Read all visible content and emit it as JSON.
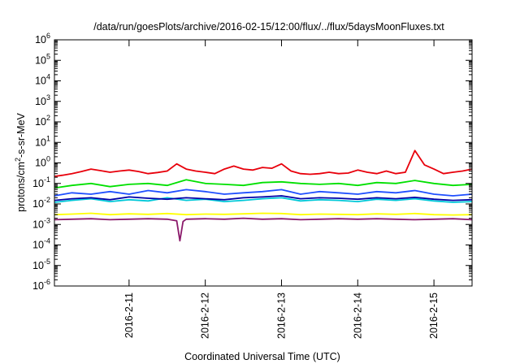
{
  "chart_data": {
    "type": "line",
    "title": "/data/run/goesPlots/archive/2016-02-15/12:00/flux/../flux/5daysMoonFluxes.txt",
    "xlabel": "Coordinated Universal Time (UTC)",
    "ylabel": "protons/cm2-s-sr-MeV",
    "yscale": "log",
    "ylim": [
      1e-06,
      1000000.0
    ],
    "xlim": [
      "2016-02-10 00:30",
      "2016-02-15 12:00"
    ],
    "grid": false,
    "legend": "none",
    "y_ticks": [
      {
        "mant": "10",
        "exp": "-6"
      },
      {
        "mant": "10",
        "exp": "-5"
      },
      {
        "mant": "10",
        "exp": "-4"
      },
      {
        "mant": "10",
        "exp": "-3"
      },
      {
        "mant": "10",
        "exp": "-2"
      },
      {
        "mant": "10",
        "exp": "-1"
      },
      {
        "mant": "10",
        "exp": "0"
      },
      {
        "mant": "10",
        "exp": "1"
      },
      {
        "mant": "10",
        "exp": "2"
      },
      {
        "mant": "10",
        "exp": "3"
      },
      {
        "mant": "10",
        "exp": "4"
      },
      {
        "mant": "10",
        "exp": "5"
      },
      {
        "mant": "10",
        "exp": "6"
      }
    ],
    "x_ticks": [
      "2016-2-11",
      "2016-2-12",
      "2016-2-13",
      "2016-2-14",
      "2016-2-15"
    ],
    "x_tick_dates": [
      "2016-02-11 00:00",
      "2016-02-12 00:00",
      "2016-02-13 00:00",
      "2016-02-14 00:00",
      "2016-02-15 00:00"
    ],
    "series": [
      {
        "color": "#e8000b",
        "x": [
          "2016-02-10 00:30",
          "2016-02-10 03:00",
          "2016-02-10 06:00",
          "2016-02-10 09:00",
          "2016-02-10 12:00",
          "2016-02-10 15:00",
          "2016-02-10 18:00",
          "2016-02-10 21:00",
          "2016-02-11 00:00",
          "2016-02-11 03:00",
          "2016-02-11 06:00",
          "2016-02-11 09:00",
          "2016-02-11 12:00",
          "2016-02-11 15:00",
          "2016-02-11 18:00",
          "2016-02-11 21:00",
          "2016-02-12 00:00",
          "2016-02-12 03:00",
          "2016-02-12 06:00",
          "2016-02-12 09:00",
          "2016-02-12 12:00",
          "2016-02-12 15:00",
          "2016-02-12 18:00",
          "2016-02-12 21:00",
          "2016-02-13 00:00",
          "2016-02-13 03:00",
          "2016-02-13 06:00",
          "2016-02-13 09:00",
          "2016-02-13 12:00",
          "2016-02-13 15:00",
          "2016-02-13 18:00",
          "2016-02-13 21:00",
          "2016-02-14 00:00",
          "2016-02-14 03:00",
          "2016-02-14 06:00",
          "2016-02-14 09:00",
          "2016-02-14 12:00",
          "2016-02-14 15:00",
          "2016-02-14 18:00",
          "2016-02-14 21:00",
          "2016-02-15 00:00",
          "2016-02-15 03:00",
          "2016-02-15 06:00",
          "2016-02-15 09:00",
          "2016-02-15 12:00"
        ],
        "values": [
          0.22,
          0.25,
          0.3,
          0.38,
          0.5,
          0.42,
          0.35,
          0.4,
          0.45,
          0.38,
          0.3,
          0.34,
          0.4,
          0.9,
          0.5,
          0.4,
          0.35,
          0.3,
          0.5,
          0.7,
          0.5,
          0.45,
          0.6,
          0.55,
          0.9,
          0.4,
          0.3,
          0.28,
          0.3,
          0.35,
          0.3,
          0.32,
          0.45,
          0.35,
          0.3,
          0.4,
          0.3,
          0.35,
          4.0,
          0.8,
          0.5,
          0.3,
          0.35,
          0.4,
          0.5
        ]
      },
      {
        "color": "#00e000",
        "x": [
          "2016-02-10 00:30",
          "2016-02-10 06:00",
          "2016-02-10 12:00",
          "2016-02-10 18:00",
          "2016-02-11 00:00",
          "2016-02-11 06:00",
          "2016-02-11 12:00",
          "2016-02-11 18:00",
          "2016-02-12 00:00",
          "2016-02-12 06:00",
          "2016-02-12 12:00",
          "2016-02-12 18:00",
          "2016-02-13 00:00",
          "2016-02-13 06:00",
          "2016-02-13 12:00",
          "2016-02-13 18:00",
          "2016-02-14 00:00",
          "2016-02-14 06:00",
          "2016-02-14 12:00",
          "2016-02-14 18:00",
          "2016-02-15 00:00",
          "2016-02-15 06:00",
          "2016-02-15 12:00"
        ],
        "values": [
          0.06,
          0.08,
          0.1,
          0.07,
          0.09,
          0.1,
          0.08,
          0.15,
          0.1,
          0.09,
          0.08,
          0.11,
          0.12,
          0.1,
          0.09,
          0.1,
          0.08,
          0.11,
          0.1,
          0.14,
          0.1,
          0.08,
          0.09
        ]
      },
      {
        "color": "#1f4fff",
        "x": [
          "2016-02-10 00:30",
          "2016-02-10 06:00",
          "2016-02-10 12:00",
          "2016-02-10 18:00",
          "2016-02-11 00:00",
          "2016-02-11 06:00",
          "2016-02-11 12:00",
          "2016-02-11 18:00",
          "2016-02-12 00:00",
          "2016-02-12 06:00",
          "2016-02-12 12:00",
          "2016-02-12 18:00",
          "2016-02-13 00:00",
          "2016-02-13 06:00",
          "2016-02-13 12:00",
          "2016-02-13 18:00",
          "2016-02-14 00:00",
          "2016-02-14 06:00",
          "2016-02-14 12:00",
          "2016-02-14 18:00",
          "2016-02-15 00:00",
          "2016-02-15 06:00",
          "2016-02-15 12:00"
        ],
        "values": [
          0.025,
          0.035,
          0.03,
          0.04,
          0.03,
          0.045,
          0.035,
          0.05,
          0.04,
          0.03,
          0.035,
          0.04,
          0.05,
          0.03,
          0.04,
          0.035,
          0.03,
          0.04,
          0.035,
          0.045,
          0.03,
          0.025,
          0.03
        ]
      },
      {
        "color": "#00c8d8",
        "x": [
          "2016-02-10 00:30",
          "2016-02-10 06:00",
          "2016-02-10 12:00",
          "2016-02-10 18:00",
          "2016-02-11 00:00",
          "2016-02-11 06:00",
          "2016-02-11 12:00",
          "2016-02-11 18:00",
          "2016-02-12 00:00",
          "2016-02-12 06:00",
          "2016-02-12 12:00",
          "2016-02-12 18:00",
          "2016-02-13 00:00",
          "2016-02-13 06:00",
          "2016-02-13 12:00",
          "2016-02-13 18:00",
          "2016-02-14 00:00",
          "2016-02-14 06:00",
          "2016-02-14 12:00",
          "2016-02-14 18:00",
          "2016-02-15 00:00",
          "2016-02-15 06:00",
          "2016-02-15 12:00"
        ],
        "values": [
          0.012,
          0.015,
          0.018,
          0.013,
          0.016,
          0.014,
          0.02,
          0.015,
          0.017,
          0.013,
          0.015,
          0.018,
          0.02,
          0.014,
          0.016,
          0.015,
          0.013,
          0.017,
          0.015,
          0.018,
          0.014,
          0.012,
          0.013
        ]
      },
      {
        "color": "#0000a8",
        "x": [
          "2016-02-10 00:30",
          "2016-02-10 06:00",
          "2016-02-10 12:00",
          "2016-02-10 18:00",
          "2016-02-11 00:00",
          "2016-02-11 06:00",
          "2016-02-11 12:00",
          "2016-02-11 18:00",
          "2016-02-12 00:00",
          "2016-02-12 06:00",
          "2016-02-12 12:00",
          "2016-02-12 18:00",
          "2016-02-13 00:00",
          "2016-02-13 06:00",
          "2016-02-13 12:00",
          "2016-02-13 18:00",
          "2016-02-14 00:00",
          "2016-02-14 06:00",
          "2016-02-14 12:00",
          "2016-02-14 18:00",
          "2016-02-15 00:00",
          "2016-02-15 06:00",
          "2016-02-15 12:00"
        ],
        "values": [
          0.015,
          0.018,
          0.02,
          0.016,
          0.022,
          0.019,
          0.017,
          0.02,
          0.018,
          0.016,
          0.02,
          0.022,
          0.025,
          0.018,
          0.02,
          0.019,
          0.017,
          0.02,
          0.018,
          0.021,
          0.017,
          0.015,
          0.016
        ]
      },
      {
        "color": "#ffff00",
        "x": [
          "2016-02-10 00:30",
          "2016-02-10 06:00",
          "2016-02-10 12:00",
          "2016-02-10 18:00",
          "2016-02-11 00:00",
          "2016-02-11 06:00",
          "2016-02-11 12:00",
          "2016-02-11 18:00",
          "2016-02-12 00:00",
          "2016-02-12 06:00",
          "2016-02-12 12:00",
          "2016-02-12 18:00",
          "2016-02-13 00:00",
          "2016-02-13 06:00",
          "2016-02-13 12:00",
          "2016-02-13 18:00",
          "2016-02-14 00:00",
          "2016-02-14 06:00",
          "2016-02-14 12:00",
          "2016-02-14 18:00",
          "2016-02-15 00:00",
          "2016-02-15 06:00",
          "2016-02-15 12:00"
        ],
        "values": [
          0.003,
          0.0032,
          0.0035,
          0.003,
          0.0033,
          0.0031,
          0.0034,
          0.003,
          0.0032,
          0.0031,
          0.0033,
          0.0035,
          0.0034,
          0.003,
          0.0032,
          0.0031,
          0.003,
          0.0033,
          0.0031,
          0.0034,
          0.003,
          0.0029,
          0.003
        ]
      },
      {
        "color": "#8b1a6b",
        "x": [
          "2016-02-10 00:30",
          "2016-02-10 06:00",
          "2016-02-10 12:00",
          "2016-02-10 18:00",
          "2016-02-11 00:00",
          "2016-02-11 06:00",
          "2016-02-11 12:00",
          "2016-02-11 15:00",
          "2016-02-11 16:00",
          "2016-02-11 17:00",
          "2016-02-11 18:00",
          "2016-02-12 00:00",
          "2016-02-12 06:00",
          "2016-02-12 12:00",
          "2016-02-12 18:00",
          "2016-02-13 00:00",
          "2016-02-13 06:00",
          "2016-02-13 12:00",
          "2016-02-13 18:00",
          "2016-02-14 00:00",
          "2016-02-14 06:00",
          "2016-02-14 12:00",
          "2016-02-14 18:00",
          "2016-02-15 00:00",
          "2016-02-15 06:00",
          "2016-02-15 12:00"
        ],
        "values": [
          0.0017,
          0.0018,
          0.0019,
          0.0017,
          0.0018,
          0.0019,
          0.0018,
          0.0015,
          0.00016,
          0.0014,
          0.0018,
          0.0019,
          0.0018,
          0.002,
          0.0018,
          0.0019,
          0.0017,
          0.0018,
          0.0019,
          0.0018,
          0.0019,
          0.0018,
          0.0017,
          0.0018,
          0.0019,
          0.0017
        ]
      }
    ]
  }
}
